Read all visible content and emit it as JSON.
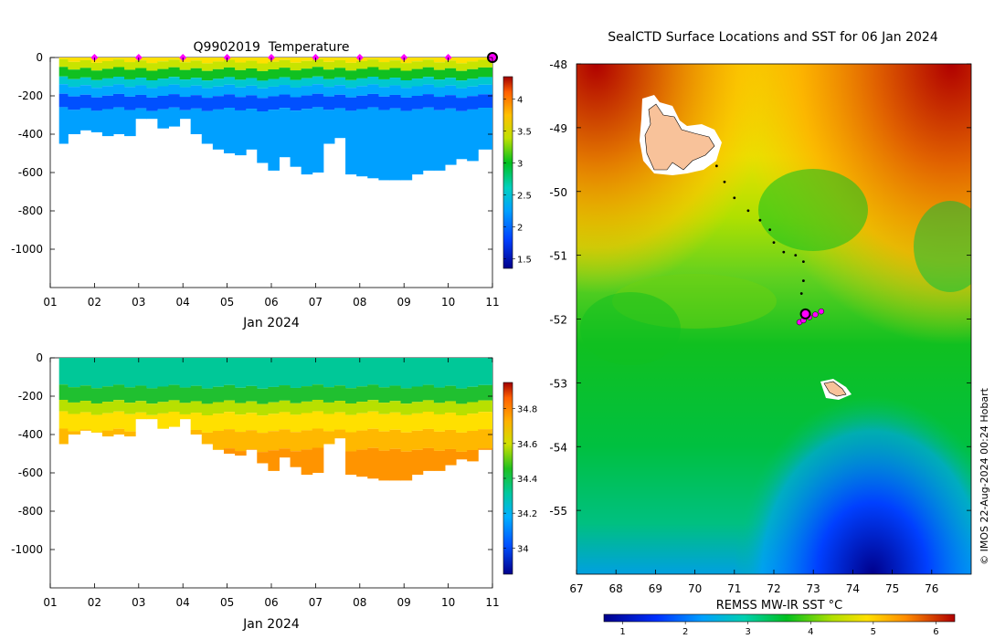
{
  "chart_data": [
    {
      "type": "heatmap",
      "title": "Q9902019  Temperature",
      "xlabel": "Jan 2024",
      "ylabel": "",
      "x_ticks": [
        "01",
        "02",
        "03",
        "04",
        "05",
        "06",
        "07",
        "08",
        "09",
        "10",
        "11"
      ],
      "xlim": [
        1,
        11
      ],
      "ylim": [
        -1200,
        0
      ],
      "y_ticks": [
        0,
        -200,
        -400,
        -600,
        -800,
        -1000
      ],
      "y_tick_labels": [
        "0",
        "-200",
        "-400",
        "-600",
        "-800",
        "-1000"
      ],
      "colorbar": {
        "range": [
          1.35,
          4.35
        ],
        "ticks": [
          1.5,
          2,
          2.5,
          3,
          3.5,
          4
        ],
        "tick_labels": [
          "1.5",
          "2",
          "2.5",
          "3",
          "3.5",
          "4"
        ]
      },
      "surface_markers_day": [
        2,
        3,
        4,
        5,
        6,
        7,
        8,
        9,
        10
      ],
      "latest_marker_day": 11,
      "profiles": [
        {
          "day": 1.25,
          "depth": 450
        },
        {
          "day": 1.55,
          "depth": 400
        },
        {
          "day": 1.8,
          "depth": 380
        },
        {
          "day": 2.05,
          "depth": 390
        },
        {
          "day": 2.3,
          "depth": 410
        },
        {
          "day": 2.55,
          "depth": 400
        },
        {
          "day": 2.8,
          "depth": 410
        },
        {
          "day": 3.05,
          "depth": 320
        },
        {
          "day": 3.3,
          "depth": 320
        },
        {
          "day": 3.55,
          "depth": 370
        },
        {
          "day": 3.8,
          "depth": 360
        },
        {
          "day": 4.05,
          "depth": 320
        },
        {
          "day": 4.3,
          "depth": 400
        },
        {
          "day": 4.55,
          "depth": 450
        },
        {
          "day": 4.8,
          "depth": 480
        },
        {
          "day": 5.05,
          "depth": 500
        },
        {
          "day": 5.3,
          "depth": 510
        },
        {
          "day": 5.55,
          "depth": 480
        },
        {
          "day": 5.8,
          "depth": 550
        },
        {
          "day": 6.05,
          "depth": 590
        },
        {
          "day": 6.3,
          "depth": 520
        },
        {
          "day": 6.55,
          "depth": 570
        },
        {
          "day": 6.8,
          "depth": 610
        },
        {
          "day": 7.05,
          "depth": 600
        },
        {
          "day": 7.3,
          "depth": 450
        },
        {
          "day": 7.55,
          "depth": 420
        },
        {
          "day": 7.8,
          "depth": 610
        },
        {
          "day": 8.05,
          "depth": 620
        },
        {
          "day": 8.3,
          "depth": 630
        },
        {
          "day": 8.55,
          "depth": 640
        },
        {
          "day": 8.8,
          "depth": 640
        },
        {
          "day": 9.05,
          "depth": 640
        },
        {
          "day": 9.3,
          "depth": 610
        },
        {
          "day": 9.55,
          "depth": 590
        },
        {
          "day": 9.8,
          "depth": 590
        },
        {
          "day": 10.05,
          "depth": 560
        },
        {
          "day": 10.3,
          "depth": 530
        },
        {
          "day": 10.55,
          "depth": 540
        },
        {
          "day": 10.8,
          "depth": 480
        }
      ]
    },
    {
      "type": "heatmap",
      "title": "",
      "xlabel": "Jan 2024",
      "ylabel": "",
      "x_ticks": [
        "01",
        "02",
        "03",
        "04",
        "05",
        "06",
        "07",
        "08",
        "09",
        "10",
        "11"
      ],
      "xlim": [
        1,
        11
      ],
      "ylim": [
        -1200,
        0
      ],
      "y_ticks": [
        0,
        -200,
        -400,
        -600,
        -800,
        -1000
      ],
      "y_tick_labels": [
        "0",
        "-200",
        "-400",
        "-600",
        "-800",
        "-1000"
      ],
      "colorbar": {
        "range": [
          33.85,
          34.95
        ],
        "ticks": [
          34.0,
          34.2,
          34.4,
          34.6,
          34.8
        ],
        "tick_labels": [
          "34",
          "34.2",
          "34.4",
          "34.6",
          "34.8"
        ]
      }
    },
    {
      "type": "heatmap",
      "title": "SealCTD Surface Locations and SST for 06 Jan 2024",
      "xlabel": "",
      "ylabel": "",
      "xlim": [
        67,
        77
      ],
      "ylim": [
        -56,
        -48
      ],
      "x_ticks": [
        67,
        68,
        69,
        70,
        71,
        72,
        73,
        74,
        75,
        76
      ],
      "x_tick_labels": [
        "67",
        "68",
        "69",
        "70",
        "71",
        "72",
        "73",
        "74",
        "75",
        "76"
      ],
      "y_ticks": [
        -48,
        -49,
        -50,
        -51,
        -52,
        -53,
        -54,
        -55
      ],
      "y_tick_labels": [
        "-48",
        "-49",
        "-50",
        "-51",
        "-52",
        "-53",
        "-54",
        "-55"
      ],
      "colorbar": {
        "label": "REMSS MW-IR SST °C",
        "range": [
          0.7,
          6.3
        ],
        "ticks": [
          1,
          2,
          3,
          4,
          5,
          6
        ],
        "tick_labels": [
          "1",
          "2",
          "3",
          "4",
          "5",
          "6"
        ]
      },
      "track": [
        {
          "lon": 70.55,
          "lat": -49.6
        },
        {
          "lon": 70.75,
          "lat": -49.85
        },
        {
          "lon": 71.0,
          "lat": -50.1
        },
        {
          "lon": 71.35,
          "lat": -50.3
        },
        {
          "lon": 71.65,
          "lat": -50.45
        },
        {
          "lon": 71.9,
          "lat": -50.6
        },
        {
          "lon": 72.0,
          "lat": -50.8
        },
        {
          "lon": 72.25,
          "lat": -50.95
        },
        {
          "lon": 72.55,
          "lat": -51.0
        },
        {
          "lon": 72.75,
          "lat": -51.1
        },
        {
          "lon": 72.75,
          "lat": -51.4
        },
        {
          "lon": 72.7,
          "lat": -51.6
        }
      ],
      "recent_positions": [
        {
          "lon": 72.65,
          "lat": -52.05
        },
        {
          "lon": 72.75,
          "lat": -52.02
        },
        {
          "lon": 72.9,
          "lat": -51.97
        },
        {
          "lon": 73.05,
          "lat": -51.93
        },
        {
          "lon": 73.2,
          "lat": -51.88
        }
      ],
      "latest_position": {
        "lon": 72.8,
        "lat": -51.92
      },
      "islands": [
        "Kerguelen",
        "Heard Island"
      ]
    }
  ],
  "credit": "© IMOS 22-Aug-2024 00:24 Hobart"
}
